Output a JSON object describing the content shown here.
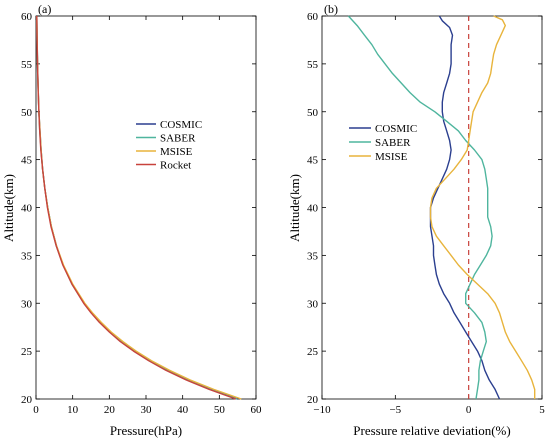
{
  "colors": {
    "COSMIC": "#2b3f8f",
    "SABER": "#4fb59e",
    "MSISE": "#e8b43c",
    "Rocket": "#c8423c",
    "zero_line": "#c8423c"
  },
  "chart_data": [
    {
      "type": "line",
      "panel_label": "(a)",
      "xlabel": "Pressure(hPa)",
      "ylabel": "Altitude(km)",
      "xlim": [
        0,
        60
      ],
      "ylim": [
        20,
        60
      ],
      "xticks": [
        0,
        10,
        20,
        30,
        40,
        50,
        60
      ],
      "yticks": [
        20,
        25,
        30,
        35,
        40,
        45,
        50,
        55,
        60
      ],
      "grid": false,
      "legend_position": "right-middle",
      "y": [
        20,
        21,
        22,
        23,
        24,
        25,
        26,
        27,
        28,
        29,
        30,
        32,
        34,
        36,
        38,
        40,
        42,
        44,
        46,
        48,
        50,
        52,
        54,
        56,
        58,
        60
      ],
      "series": [
        {
          "name": "COSMIC",
          "x": [
            55.0,
            47.6,
            41.3,
            35.8,
            31.0,
            26.9,
            23.3,
            20.2,
            17.5,
            15.2,
            13.2,
            9.9,
            7.4,
            5.6,
            4.2,
            3.2,
            2.4,
            1.8,
            1.4,
            1.1,
            0.8,
            0.62,
            0.48,
            0.37,
            0.28,
            0.22
          ]
        },
        {
          "name": "SABER",
          "x": [
            54.8,
            47.4,
            41.1,
            35.6,
            30.9,
            26.8,
            23.2,
            20.1,
            17.4,
            15.1,
            13.1,
            9.8,
            7.4,
            5.5,
            4.2,
            3.2,
            2.4,
            1.8,
            1.4,
            1.0,
            0.79,
            0.61,
            0.47,
            0.36,
            0.28,
            0.21
          ]
        },
        {
          "name": "MSISE",
          "x": [
            56.0,
            48.5,
            42.0,
            36.4,
            31.5,
            27.3,
            23.7,
            20.5,
            17.8,
            15.4,
            13.3,
            10.0,
            7.5,
            5.6,
            4.2,
            3.2,
            2.4,
            1.8,
            1.4,
            1.1,
            0.8,
            0.62,
            0.48,
            0.37,
            0.29,
            0.22
          ]
        },
        {
          "name": "Rocket",
          "x": [
            54.5,
            47.2,
            40.9,
            35.4,
            30.7,
            26.6,
            23.0,
            20.0,
            17.3,
            15.0,
            13.0,
            9.8,
            7.3,
            5.5,
            4.1,
            3.1,
            2.4,
            1.8,
            1.3,
            1.0,
            0.78,
            0.6,
            0.47,
            0.36,
            0.28,
            0.21
          ]
        }
      ]
    },
    {
      "type": "line",
      "panel_label": "(b)",
      "xlabel": "Pressure relative deviation(%)",
      "ylabel": "Altitude(km)",
      "xlim": [
        -10,
        5
      ],
      "ylim": [
        20,
        60
      ],
      "xticks": [
        -10,
        -5,
        0,
        5
      ],
      "yticks": [
        20,
        25,
        30,
        35,
        40,
        45,
        50,
        55,
        60
      ],
      "grid": false,
      "legend_position": "left-middle",
      "reference_line": {
        "x": 0,
        "style": "dashed"
      },
      "series": [
        {
          "name": "COSMIC",
          "points": [
            [
              2.1,
              20
            ],
            [
              1.8,
              21
            ],
            [
              1.4,
              22
            ],
            [
              1.1,
              23
            ],
            [
              0.9,
              24
            ],
            [
              0.6,
              25
            ],
            [
              0.2,
              26
            ],
            [
              -0.2,
              27
            ],
            [
              -0.6,
              28
            ],
            [
              -1.0,
              29
            ],
            [
              -1.3,
              30
            ],
            [
              -1.7,
              31
            ],
            [
              -2.0,
              32
            ],
            [
              -2.2,
              33
            ],
            [
              -2.3,
              34
            ],
            [
              -2.4,
              35
            ],
            [
              -2.4,
              36
            ],
            [
              -2.5,
              37
            ],
            [
              -2.6,
              38
            ],
            [
              -2.6,
              39
            ],
            [
              -2.6,
              40
            ],
            [
              -2.4,
              41
            ],
            [
              -2.1,
              42
            ],
            [
              -1.8,
              43
            ],
            [
              -1.5,
              44
            ],
            [
              -1.3,
              45
            ],
            [
              -1.2,
              46
            ],
            [
              -1.3,
              47
            ],
            [
              -1.5,
              48
            ],
            [
              -1.7,
              49
            ],
            [
              -1.8,
              50
            ],
            [
              -1.8,
              51
            ],
            [
              -1.7,
              52
            ],
            [
              -1.5,
              53
            ],
            [
              -1.3,
              54
            ],
            [
              -1.2,
              55
            ],
            [
              -1.2,
              56
            ],
            [
              -1.2,
              57
            ],
            [
              -1.1,
              58
            ],
            [
              -1.3,
              58.8
            ],
            [
              -1.8,
              59.5
            ],
            [
              -2.0,
              60
            ]
          ]
        },
        {
          "name": "SABER",
          "points": [
            [
              0.5,
              20
            ],
            [
              0.6,
              21
            ],
            [
              0.7,
              22
            ],
            [
              0.7,
              23
            ],
            [
              0.8,
              24
            ],
            [
              1.0,
              25
            ],
            [
              1.2,
              26
            ],
            [
              1.1,
              27
            ],
            [
              0.9,
              28
            ],
            [
              0.4,
              29
            ],
            [
              -0.2,
              30
            ],
            [
              -0.2,
              31
            ],
            [
              0.1,
              32
            ],
            [
              0.4,
              33
            ],
            [
              0.8,
              34
            ],
            [
              1.2,
              35
            ],
            [
              1.5,
              36
            ],
            [
              1.6,
              37
            ],
            [
              1.5,
              38
            ],
            [
              1.3,
              39
            ],
            [
              1.3,
              40
            ],
            [
              1.3,
              41
            ],
            [
              1.3,
              42
            ],
            [
              1.2,
              43
            ],
            [
              1.1,
              44
            ],
            [
              0.9,
              45
            ],
            [
              0.4,
              46
            ],
            [
              -0.2,
              47
            ],
            [
              -0.7,
              48
            ],
            [
              -1.5,
              49
            ],
            [
              -2.3,
              50
            ],
            [
              -3.3,
              51
            ],
            [
              -4.0,
              52
            ],
            [
              -4.6,
              53
            ],
            [
              -5.2,
              54
            ],
            [
              -5.7,
              55
            ],
            [
              -6.2,
              56
            ],
            [
              -6.6,
              57
            ],
            [
              -7.1,
              58
            ],
            [
              -7.6,
              59
            ],
            [
              -8.2,
              60
            ]
          ]
        },
        {
          "name": "MSISE",
          "points": [
            [
              4.5,
              20
            ],
            [
              4.5,
              21
            ],
            [
              4.3,
              22
            ],
            [
              4.0,
              23
            ],
            [
              3.6,
              24
            ],
            [
              3.2,
              25
            ],
            [
              2.8,
              26
            ],
            [
              2.5,
              27
            ],
            [
              2.3,
              28
            ],
            [
              2.1,
              29
            ],
            [
              1.8,
              30
            ],
            [
              1.3,
              31
            ],
            [
              0.6,
              32
            ],
            [
              -0.1,
              33
            ],
            [
              -0.7,
              34
            ],
            [
              -1.2,
              35
            ],
            [
              -1.7,
              36
            ],
            [
              -2.2,
              37
            ],
            [
              -2.5,
              38
            ],
            [
              -2.6,
              39
            ],
            [
              -2.6,
              40
            ],
            [
              -2.5,
              41
            ],
            [
              -2.2,
              42
            ],
            [
              -1.6,
              43
            ],
            [
              -1.0,
              44
            ],
            [
              -0.5,
              45
            ],
            [
              -0.1,
              46
            ],
            [
              0.0,
              47
            ],
            [
              0.1,
              48
            ],
            [
              0.2,
              49
            ],
            [
              0.3,
              50
            ],
            [
              0.6,
              51
            ],
            [
              0.9,
              52
            ],
            [
              1.3,
              53
            ],
            [
              1.5,
              54
            ],
            [
              1.6,
              55
            ],
            [
              1.7,
              56
            ],
            [
              1.9,
              57
            ],
            [
              2.2,
              58
            ],
            [
              2.5,
              59
            ],
            [
              2.3,
              59.6
            ],
            [
              1.7,
              60
            ]
          ]
        }
      ]
    }
  ]
}
